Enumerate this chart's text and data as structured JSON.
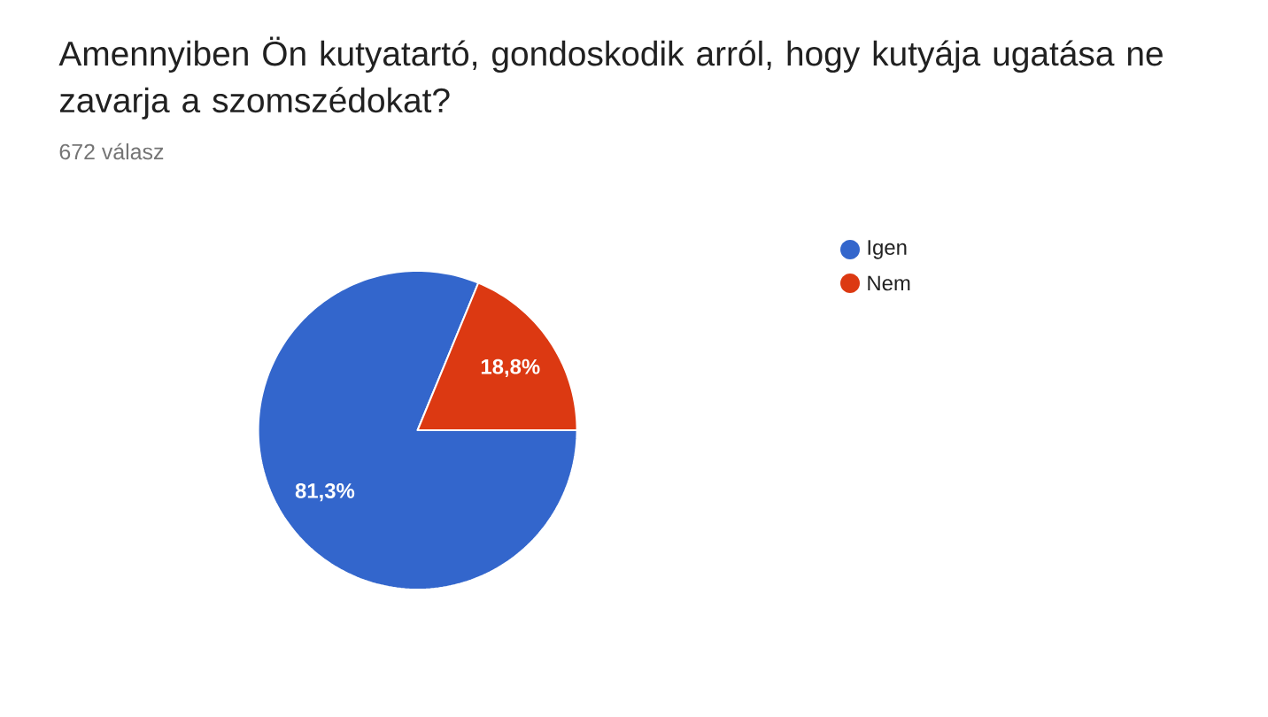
{
  "chart_data": {
    "type": "pie",
    "title": "Amennyiben Ön kutyatartó, gondoskodik arról, hogy kutyája ugatása ne zavarja a szomszédokat?",
    "subtitle": "672 válasz",
    "categories": [
      "Igen",
      "Nem"
    ],
    "values": [
      81.3,
      18.8
    ],
    "colors": [
      "#3366cc",
      "#dc3912"
    ],
    "value_labels": [
      "81,3%",
      "18,8%"
    ],
    "legend": "right"
  }
}
